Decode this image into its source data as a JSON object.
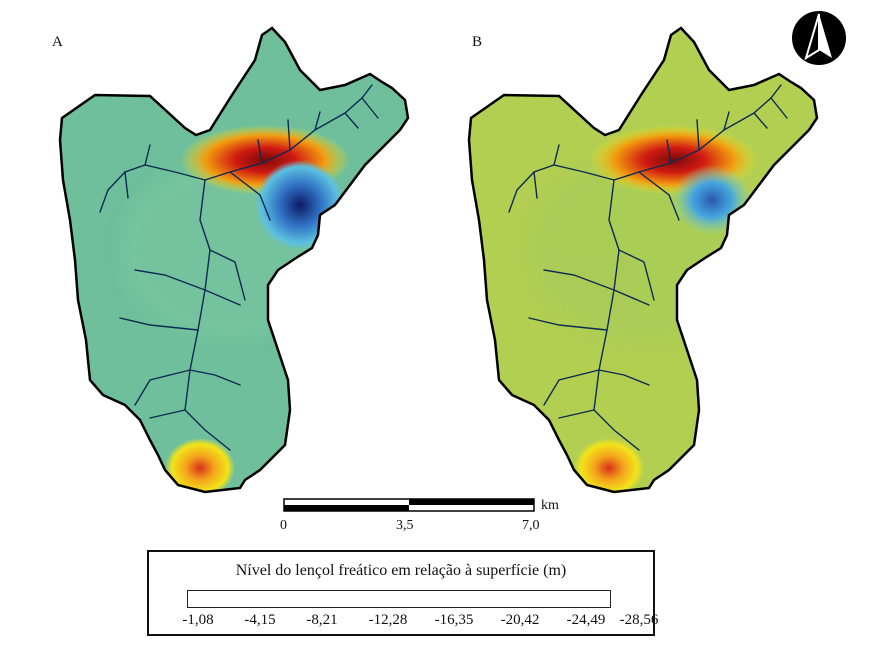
{
  "panels": [
    {
      "label": "A",
      "tint": "#6fbf9c"
    },
    {
      "label": "B",
      "tint": "#b2cf52"
    }
  ],
  "north_arrow": {
    "icon": "north-arrow-icon"
  },
  "scale_bar": {
    "unit": "km",
    "ticks": [
      "0",
      "3,5",
      "7,0"
    ]
  },
  "legend": {
    "title": "Nível do lençol freático em relação à superfície (m)",
    "ticks": [
      "-1,08",
      "-4,15",
      "-8,21",
      "-12,28",
      "-16,35",
      "-20,42",
      "-24,49",
      "-28,56"
    ],
    "colors": [
      "#7a0000",
      "#d81c0c",
      "#f59a08",
      "#f2e41a",
      "#9fca48",
      "#43b092",
      "#2f6fc2",
      "#0c1a66"
    ]
  }
}
